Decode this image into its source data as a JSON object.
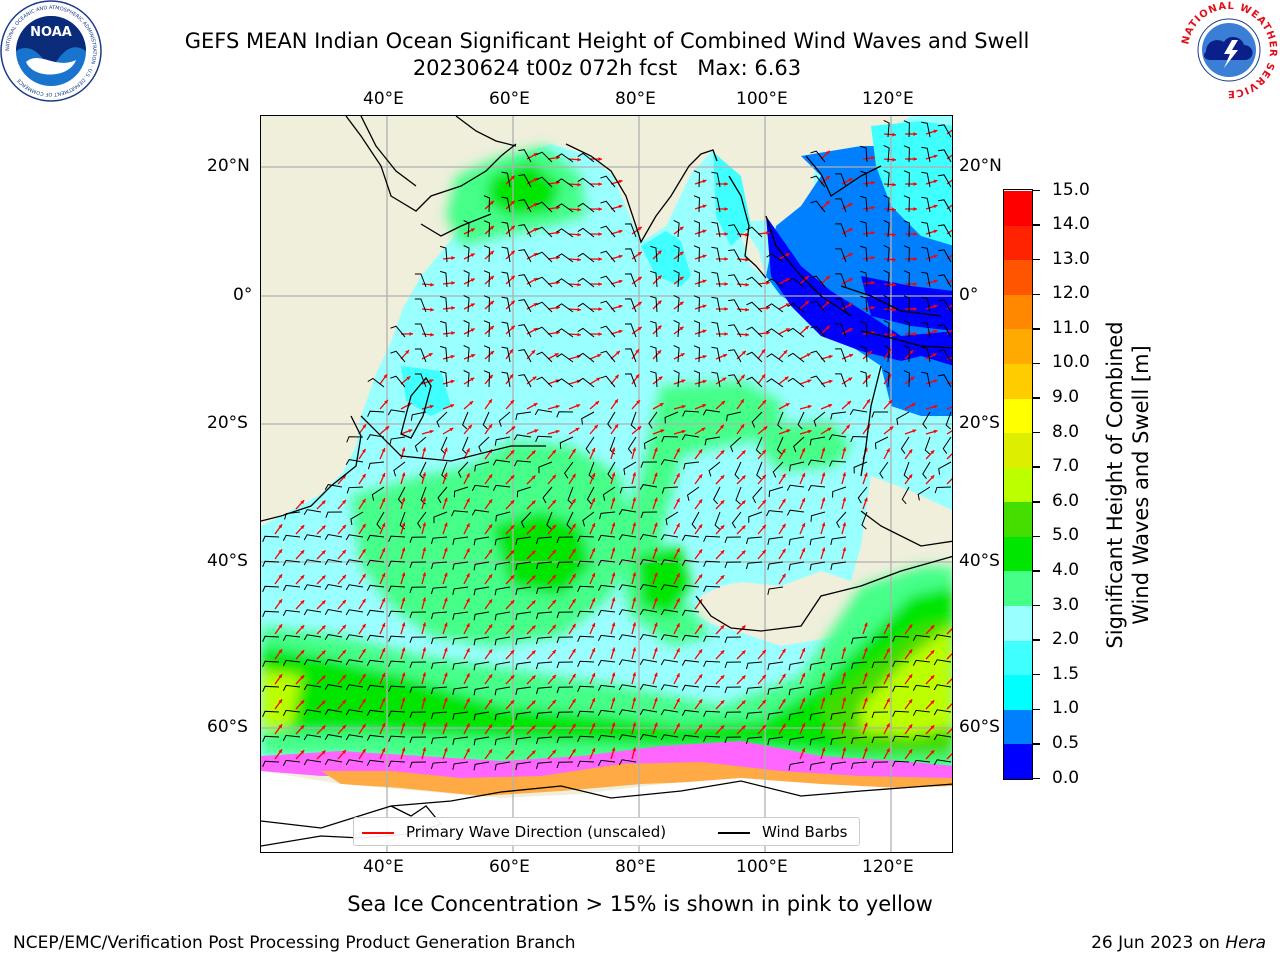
{
  "title": {
    "line1": "GEFS MEAN Indian Ocean Significant Height of Combined Wind Waves and Swell",
    "line2": "20230624 t00z 072h fcst   Max: 6.63"
  },
  "logos": {
    "noaa_text": "NOAA",
    "noaa_ring_text": "NATIONAL OCEANIC AND ATMOSPHERIC ADMINISTRATION · U.S. DEPARTMENT OF COMMERCE",
    "nws_ring_text": "NATIONAL WEATHER SERVICE"
  },
  "map": {
    "lon_labels": [
      "40°E",
      "60°E",
      "80°E",
      "100°E",
      "120°E"
    ],
    "lat_labels_left": [
      "20°N",
      "0°",
      "20°S",
      "40°S",
      "60°S"
    ],
    "lat_labels_right": [
      "20°N",
      "0°",
      "20°S",
      "40°S",
      "60°S"
    ],
    "extent": {
      "lon_min": 20,
      "lon_max": 130,
      "lat_min": -75,
      "lat_max": 28
    },
    "colors": {
      "land": "#efefdc",
      "ocean_base": "#99ffff",
      "coast": "#000000",
      "gridline": "#b0b0b0",
      "ice": "#ffffff",
      "wave_arrow": "#ff0000",
      "wind_barb": "#000000"
    }
  },
  "legend": {
    "wave_label": "Primary Wave Direction (unscaled)",
    "wind_label": "Wind Barbs"
  },
  "colorbar": {
    "label_line1": "Significant Height of Combined",
    "label_line2": "Wind Waves and Swell [m]",
    "ticks": [
      "0.0",
      "0.5",
      "1.0",
      "1.5",
      "2.0",
      "3.0",
      "4.0",
      "5.0",
      "6.0",
      "7.0",
      "8.0",
      "9.0",
      "10.0",
      "11.0",
      "12.0",
      "13.0",
      "14.0",
      "15.0"
    ],
    "colors": [
      "#0000ff",
      "#0080ff",
      "#00ffff",
      "#40ffff",
      "#99ffff",
      "#44ff88",
      "#00e600",
      "#44dd00",
      "#bbff00",
      "#ddee00",
      "#ffff00",
      "#ffcc00",
      "#ffaa00",
      "#ff8800",
      "#ff5500",
      "#ff2200",
      "#ff0000"
    ]
  },
  "subtitle": "Sea Ice Concentration > 15% is shown in pink to yellow",
  "footer": {
    "left": "NCEP/EMC/Verification Post Processing Product Generation Branch",
    "right_prefix": "26 Jun 2023 on ",
    "right_host": "Hera"
  }
}
